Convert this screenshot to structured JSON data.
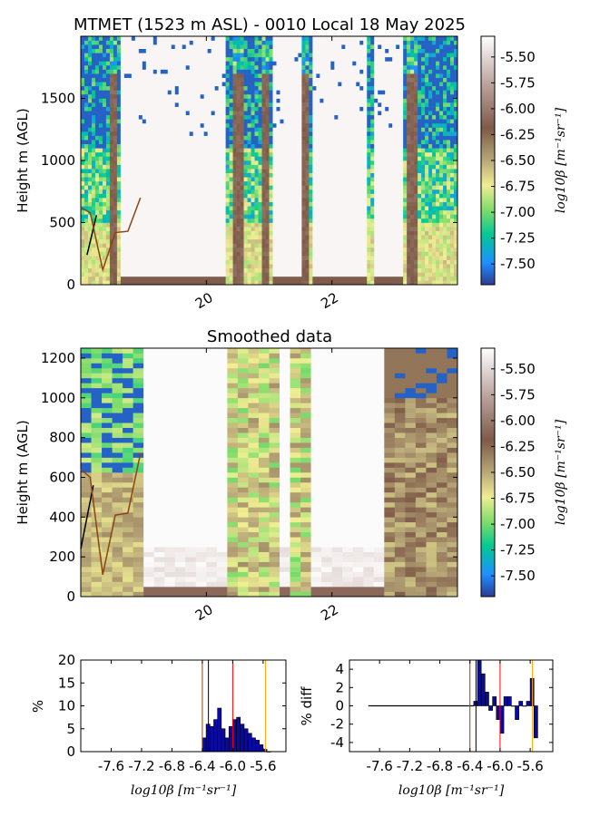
{
  "figure": {
    "title": "MTMET (1523 m ASL) - 0010 Local 18 May 2025",
    "subtitle": "Smoothed data"
  },
  "chart_data": [
    {
      "type": "heatmap",
      "title": "MTMET (1523 m ASL) - 0010 Local 18 May 2025",
      "ylabel": "Height m (AGL)",
      "xlim": [
        18.0,
        24.0
      ],
      "ylim": [
        0,
        2000
      ],
      "xticks": [
        20,
        22
      ],
      "yticks": [
        0,
        500,
        1000,
        1500
      ],
      "colorbar": {
        "label": "log10β [m⁻¹sr⁻¹]",
        "range": [
          -7.7,
          -5.3
        ],
        "ticks": [
          "-5.50",
          "-5.75",
          "-6.00",
          "-6.25",
          "-6.50",
          "-6.75",
          "-7.00",
          "-7.25",
          "-7.50"
        ]
      },
      "overlay_lines": [
        {
          "color": "#000000",
          "x": [
            18.1,
            18.25
          ],
          "y": [
            240,
            560
          ]
        },
        {
          "color": "#8b4513",
          "x": [
            18.0,
            18.15,
            18.35,
            18.55,
            18.75,
            18.95
          ],
          "y": [
            620,
            580,
            120,
            420,
            430,
            700
          ]
        }
      ]
    },
    {
      "type": "heatmap",
      "title": "Smoothed data",
      "ylabel": "Height m (AGL)",
      "xlim": [
        18.0,
        24.0
      ],
      "ylim": [
        0,
        1250
      ],
      "xticks": [
        20,
        22
      ],
      "yticks": [
        0,
        200,
        400,
        600,
        800,
        1000,
        1200
      ],
      "colorbar": {
        "label": "log10β [m⁻¹sr⁻¹]",
        "range": [
          -7.7,
          -5.3
        ],
        "ticks": [
          "-5.50",
          "-5.75",
          "-6.00",
          "-6.25",
          "-6.50",
          "-6.75",
          "-7.00",
          "-7.25",
          "-7.50"
        ]
      },
      "overlay_lines": [
        {
          "color": "#000000",
          "x": [
            18.0,
            18.2
          ],
          "y": [
            240,
            560
          ]
        },
        {
          "color": "#8b4513",
          "x": [
            18.0,
            18.15,
            18.35,
            18.55,
            18.75,
            18.95
          ],
          "y": [
            640,
            600,
            110,
            410,
            420,
            720
          ]
        }
      ]
    },
    {
      "type": "bar",
      "title": "",
      "xlabel": "log10β [m⁻¹sr⁻¹]",
      "ylabel": "%",
      "xlim": [
        -8.0,
        -5.3
      ],
      "ylim": [
        0,
        20
      ],
      "xticks": [
        "-7.6",
        "-7.2",
        "-6.8",
        "-6.4",
        "-6.0",
        "-5.6"
      ],
      "yticks": [
        0,
        5,
        10,
        15,
        20
      ],
      "bin_width": 0.05,
      "x": [
        -6.4,
        -6.35,
        -6.3,
        -6.25,
        -6.2,
        -6.15,
        -6.1,
        -6.05,
        -6.0,
        -5.95,
        -5.9,
        -5.85,
        -5.8,
        -5.75,
        -5.7,
        -5.65,
        -5.6,
        -5.55
      ],
      "values": [
        3,
        6,
        5.5,
        7,
        9.5,
        5,
        3,
        5.5,
        7,
        7.5,
        6,
        5,
        4,
        3,
        2.5,
        1.5,
        0.5,
        0
      ],
      "vlines": [
        {
          "color": "#8b4513",
          "x": -6.4
        },
        {
          "color": "#000000",
          "x": -6.32
        },
        {
          "color": "#ff0000",
          "x": -6.0
        },
        {
          "color": "#ffa500",
          "x": -5.57
        }
      ]
    },
    {
      "type": "bar",
      "title": "",
      "xlabel": "log10β [m⁻¹sr⁻¹]",
      "ylabel": "% diff",
      "xlim": [
        -8.0,
        -5.3
      ],
      "ylim": [
        -5,
        5
      ],
      "xticks": [
        "-7.6",
        "-7.2",
        "-6.8",
        "-6.4",
        "-6.0",
        "-5.6"
      ],
      "yticks": [
        -4,
        -2,
        0,
        2,
        4
      ],
      "bin_width": 0.05,
      "x": [
        -6.35,
        -6.3,
        -6.25,
        -6.2,
        -6.15,
        -6.1,
        -6.05,
        -6.0,
        -5.95,
        -5.9,
        -5.85,
        -5.8,
        -5.75,
        -5.7,
        -5.65,
        -5.6,
        -5.55
      ],
      "values": [
        0.5,
        5,
        3.5,
        1.5,
        -0.5,
        1,
        -1.5,
        -3,
        1,
        1,
        0,
        -1.5,
        0.5,
        0,
        0.5,
        3,
        -3.5
      ],
      "zero_line": {
        "from": -7.75,
        "to": -6.35
      },
      "vlines": [
        {
          "color": "#8b4513",
          "x": -6.4
        },
        {
          "color": "#000000",
          "x": -6.32
        },
        {
          "color": "#ff0000",
          "x": -6.0
        },
        {
          "color": "#ffa500",
          "x": -5.57
        }
      ]
    }
  ]
}
